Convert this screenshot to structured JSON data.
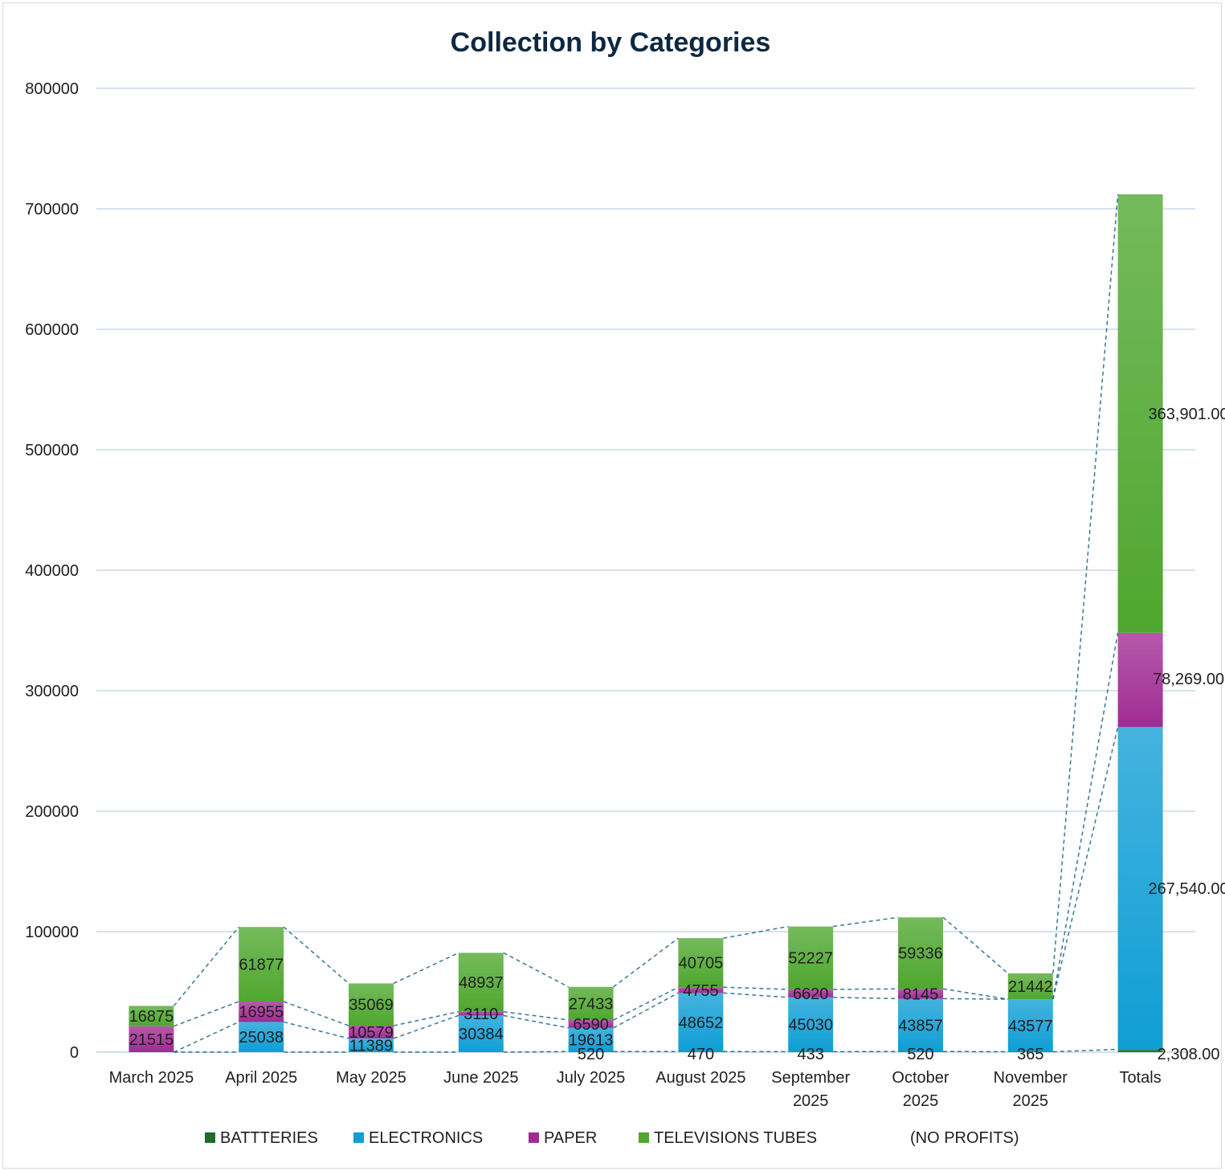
{
  "chart_data": {
    "type": "bar",
    "stacked": true,
    "title": "Collection by Categories",
    "xlabel": "",
    "ylabel": "",
    "ylim": [
      0,
      800000
    ],
    "yticks": [
      "0",
      "100000",
      "200000",
      "300000",
      "400000",
      "500000",
      "600000",
      "700000",
      "800000"
    ],
    "grid": true,
    "legend_position": "bottom",
    "categories": [
      [
        "March 2025"
      ],
      [
        "April 2025"
      ],
      [
        "May 2025"
      ],
      [
        "June 2025"
      ],
      [
        "July 2025"
      ],
      [
        "August 2025"
      ],
      [
        "September",
        "2025"
      ],
      [
        "October",
        "2025"
      ],
      [
        "November",
        "2025"
      ],
      [
        "Totals"
      ]
    ],
    "series": [
      {
        "name": "BATTTERIES",
        "color": "#1e6b2a",
        "values": [
          0,
          0,
          0,
          0,
          520,
          470,
          433,
          520,
          365,
          2308
        ],
        "labels": [
          "",
          "",
          "",
          "",
          "520",
          "470",
          "433",
          "520",
          "365",
          "2,308.00"
        ]
      },
      {
        "name": "ELECTRONICS",
        "color": "#0f9ed5",
        "values": [
          0,
          25038,
          11389,
          30384,
          19613,
          48652,
          45030,
          43857,
          43577,
          267540
        ],
        "labels": [
          "",
          "25038",
          "11389",
          "30384",
          "19613",
          "48652",
          "45030",
          "43857",
          "43577",
          "267,540.00"
        ]
      },
      {
        "name": "PAPER",
        "color": "#a02b93",
        "values": [
          21515,
          16955,
          10579,
          3110,
          6590,
          4755,
          6620,
          8145,
          0,
          78269
        ],
        "labels": [
          "21515",
          "16955",
          "10579",
          "3110",
          "6590",
          "4755",
          "6620",
          "8145",
          "",
          "78,269.00"
        ]
      },
      {
        "name": "TELEVISIONS TUBES",
        "color": "#4ea72e",
        "values": [
          16875,
          61877,
          35069,
          48937,
          27433,
          40705,
          52227,
          59336,
          21442,
          363901
        ],
        "labels": [
          "16875",
          "61877",
          "35069",
          "48937",
          "27433",
          "40705",
          "52227",
          "59336",
          "21442",
          "363,901.00"
        ]
      }
    ],
    "extra_legend": "(NO PROFITS)",
    "series_lines": "dashed"
  }
}
